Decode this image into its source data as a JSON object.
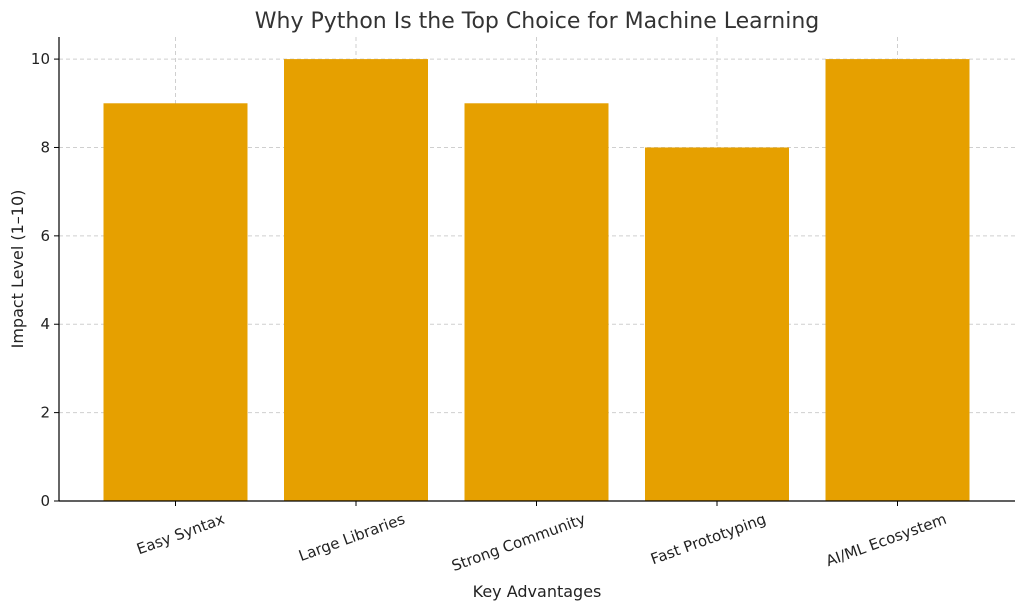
{
  "chart_data": {
    "type": "bar",
    "title": "Why Python Is the Top Choice for Machine Learning",
    "xlabel": "Key Advantages",
    "ylabel": "Impact Level (1–10)",
    "categories": [
      "Easy Syntax",
      "Large Libraries",
      "Strong Community",
      "Fast Prototyping",
      "AI/ML Ecosystem"
    ],
    "values": [
      9,
      10,
      9,
      8,
      10
    ],
    "ylim": [
      0,
      10.5
    ],
    "yticks": [
      0,
      2,
      4,
      6,
      8,
      10
    ],
    "grid": true,
    "bar_color": "#E6A000"
  }
}
